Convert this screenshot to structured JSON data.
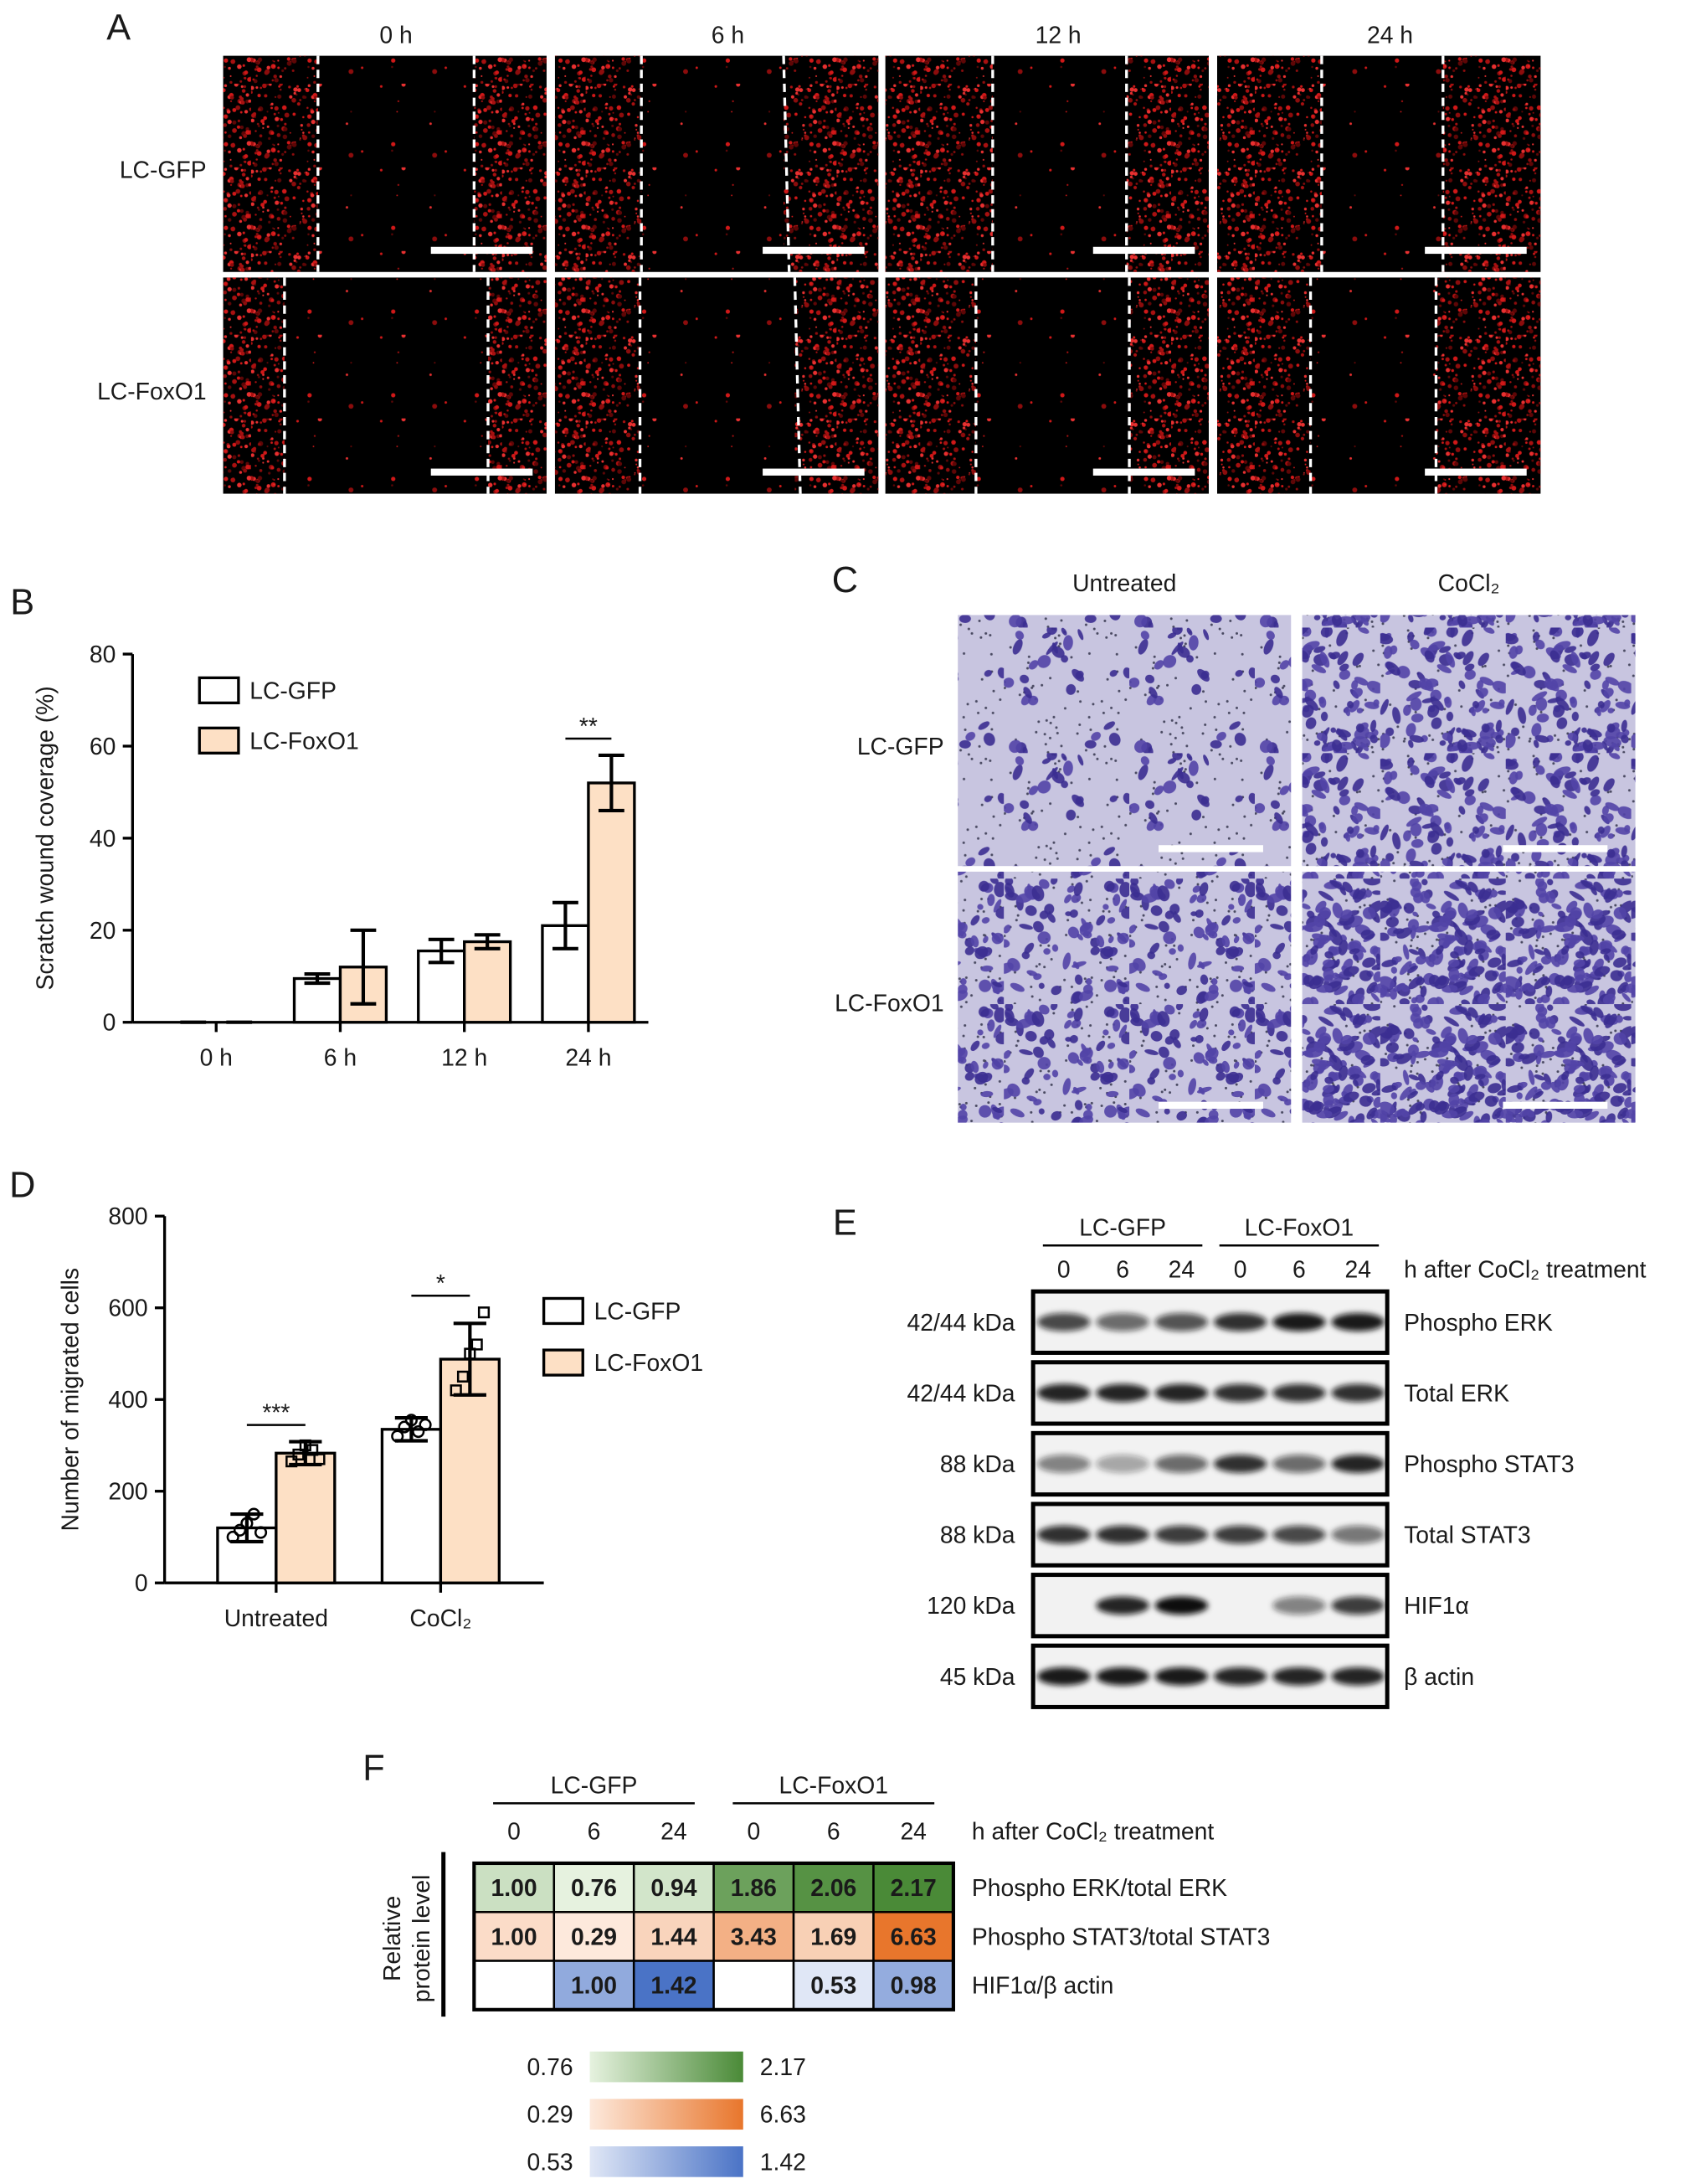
{
  "panel_labels": {
    "a": "A",
    "b": "B",
    "c": "C",
    "d": "D",
    "e": "E",
    "f": "F"
  },
  "panel_a": {
    "columns": [
      "0 h",
      "6 h",
      "12 h",
      "24 h"
    ],
    "rows": [
      "LC-GFP",
      "LC-FoxO1"
    ]
  },
  "chart_data": [
    {
      "type": "bar",
      "ylabel": "Scratch wound coverage (%)",
      "categories": [
        "0 h",
        "6 h",
        "12 h",
        "24 h"
      ],
      "series": [
        {
          "name": "LC-GFP",
          "color": "#ffffff",
          "values": [
            0,
            9.5,
            15.5,
            21
          ],
          "errors": [
            0,
            1,
            2.5,
            5
          ]
        },
        {
          "name": "LC-FoxO1",
          "color": "#fde0c5",
          "values": [
            0,
            12,
            17.5,
            52
          ],
          "errors": [
            0,
            8,
            1.5,
            6
          ]
        }
      ],
      "significance": [
        null,
        null,
        null,
        "**"
      ],
      "ylim": [
        0,
        80
      ],
      "yticks": [
        0,
        20,
        40,
        60,
        80
      ]
    },
    {
      "type": "bar",
      "ylabel": "Number of migrated cells",
      "categories": [
        "Untreated",
        "CoCl₂"
      ],
      "series": [
        {
          "name": "LC-GFP",
          "color": "#ffffff",
          "marker": "circle",
          "values": [
            120,
            335
          ],
          "errors": [
            30,
            25
          ],
          "points": [
            [
              100,
              115,
              130,
              150,
              110
            ],
            [
              320,
              340,
              355,
              330,
              345
            ]
          ]
        },
        {
          "name": "LC-FoxO1",
          "color": "#fde0c5",
          "marker": "square",
          "values": [
            283,
            488
          ],
          "errors": [
            25,
            78
          ],
          "points": [
            [
              265,
              280,
              300,
              290,
              270
            ],
            [
              420,
              450,
              500,
              520,
              590
            ]
          ]
        }
      ],
      "significance": [
        "***",
        "*"
      ],
      "ylim": [
        0,
        800
      ],
      "yticks": [
        0,
        200,
        400,
        600,
        800
      ]
    }
  ],
  "panel_c": {
    "columns": [
      "Untreated",
      "CoCl₂"
    ],
    "rows": [
      "LC-GFP",
      "LC-FoxO1"
    ]
  },
  "panel_e": {
    "groups": [
      "LC-GFP",
      "LC-FoxO1"
    ],
    "lanes": [
      "0",
      "6",
      "24",
      "0",
      "6",
      "24"
    ],
    "lane_title": "h after CoCl₂ treatment",
    "rows": [
      {
        "size": "42/44 kDa",
        "name": "Phospho ERK"
      },
      {
        "size": "42/44 kDa",
        "name": "Total ERK"
      },
      {
        "size": "88 kDa",
        "name": "Phospho STAT3"
      },
      {
        "size": "88 kDa",
        "name": "Total STAT3"
      },
      {
        "size": "120 kDa",
        "name": "HIF1α"
      },
      {
        "size": "45 kDa",
        "name": "β actin"
      }
    ]
  },
  "panel_f": {
    "groups": [
      "LC-GFP",
      "LC-FoxO1"
    ],
    "lanes": [
      "0",
      "6",
      "24",
      "0",
      "6",
      "24"
    ],
    "lane_title": "h after CoCl₂ treatment",
    "ylabel": [
      "Relative",
      "protein level"
    ],
    "rows": [
      {
        "name": "Phospho ERK/total ERK",
        "values": [
          1,
          0.76,
          0.94,
          1.86,
          2.06,
          2.17
        ],
        "value_labels": [
          "1.00",
          "0.76",
          "0.94",
          "1.86",
          "2.06",
          "2.17"
        ]
      },
      {
        "name": "Phospho STAT3/total STAT3",
        "values": [
          1,
          0.29,
          1.44,
          3.43,
          1.69,
          6.63
        ],
        "value_labels": [
          "1.00",
          "0.29",
          "1.44",
          "3.43",
          "1.69",
          "6.63"
        ]
      },
      {
        "name": "HIF1α/β actin",
        "values": [
          null,
          1,
          1.42,
          null,
          0.53,
          0.98
        ],
        "value_labels": [
          null,
          "1.00",
          "1.42",
          null,
          "0.53",
          "0.98"
        ]
      }
    ],
    "scales": [
      {
        "range": [
          0.76,
          2.17
        ],
        "colors": [
          "#e6f2df",
          "#4a8a37"
        ]
      },
      {
        "range": [
          0.29,
          6.63
        ],
        "colors": [
          "#fde9dc",
          "#e8762c"
        ]
      },
      {
        "range": [
          0.53,
          1.42
        ],
        "colors": [
          "#e0e7f6",
          "#4a73c6"
        ]
      }
    ]
  }
}
